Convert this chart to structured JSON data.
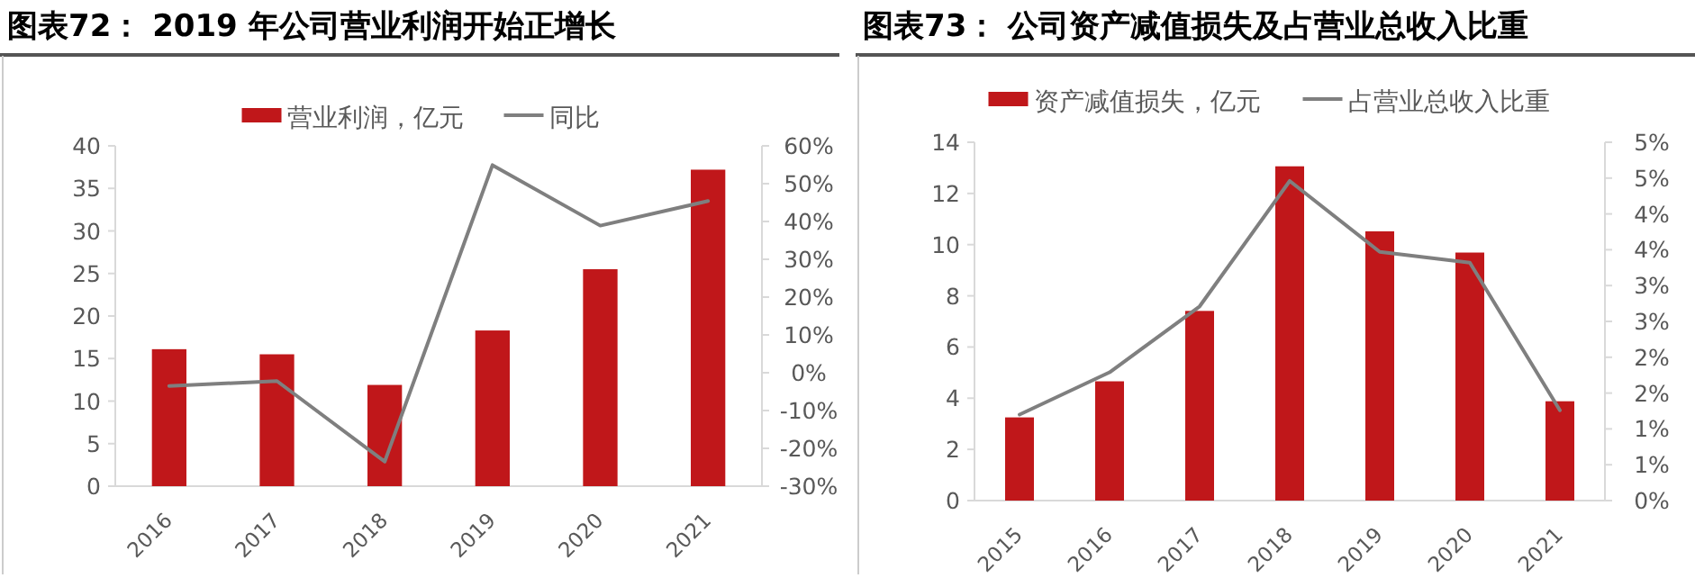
{
  "chart_data": [
    {
      "type": "bar",
      "title": "图表72： 2019 年公司营业利润开始正增长",
      "categories": [
        "2016",
        "2017",
        "2018",
        "2019",
        "2020",
        "2021"
      ],
      "series": [
        {
          "name": "营业利润，亿元",
          "color": "#c0171a",
          "values": [
            16.1,
            15.5,
            11.9,
            18.3,
            25.5,
            37.2
          ]
        },
        {
          "name": "同比",
          "type": "line",
          "axis": "y2",
          "color": "#7f7f7f",
          "values": [
            -3.5,
            -2.2,
            -23.5,
            54.9,
            38.9,
            45.4
          ]
        }
      ],
      "ylim": [
        0,
        40
      ],
      "yticks": [
        0,
        5,
        10,
        15,
        20,
        25,
        30,
        35,
        40
      ],
      "y2lim": [
        -30,
        60
      ],
      "y2ticks": [
        {
          "value": -30,
          "label": "-30%"
        },
        {
          "value": -20,
          "label": "-20%"
        },
        {
          "value": -10,
          "label": "-10%"
        },
        {
          "value": 0,
          "label": "0%"
        },
        {
          "value": 10,
          "label": "10%"
        },
        {
          "value": 20,
          "label": "20%"
        },
        {
          "value": 30,
          "label": "30%"
        },
        {
          "value": 40,
          "label": "40%"
        },
        {
          "value": 50,
          "label": "50%"
        },
        {
          "value": 60,
          "label": "60%"
        }
      ],
      "legend": "top",
      "marker": "none",
      "line_style": "solid"
    },
    {
      "type": "bar",
      "title": "图表73： 公司资产减值损失及占营业总收入比重",
      "categories": [
        "2015",
        "2016",
        "2017",
        "2018",
        "2019",
        "2020",
        "2021"
      ],
      "series": [
        {
          "name": "资产减值损失，亿元",
          "color": "#c0171a",
          "values": [
            3.25,
            4.66,
            7.41,
            13.06,
            10.52,
            9.69,
            3.88
          ]
        },
        {
          "name": "占营业总收入比重",
          "type": "line",
          "axis": "y2",
          "color": "#7f7f7f",
          "values": [
            1.2,
            1.79,
            2.71,
            4.46,
            3.47,
            3.32,
            1.26
          ]
        }
      ],
      "ylim": [
        0,
        14
      ],
      "yticks": [
        0,
        2,
        4,
        6,
        8,
        10,
        12,
        14
      ],
      "y2lim": [
        0,
        5
      ],
      "y2ticks": [
        {
          "value": 0,
          "label": "0%"
        },
        {
          "value": 0.5,
          "label": "1%"
        },
        {
          "value": 1,
          "label": "1%"
        },
        {
          "value": 1.5,
          "label": "2%"
        },
        {
          "value": 2,
          "label": "2%"
        },
        {
          "value": 2.5,
          "label": "3%"
        },
        {
          "value": 3,
          "label": "3%"
        },
        {
          "value": 3.5,
          "label": "4%"
        },
        {
          "value": 4,
          "label": "4%"
        },
        {
          "value": 4.5,
          "label": "5%"
        },
        {
          "value": 5,
          "label": "5%"
        }
      ],
      "legend": "top",
      "marker": "none",
      "line_style": "solid"
    }
  ]
}
